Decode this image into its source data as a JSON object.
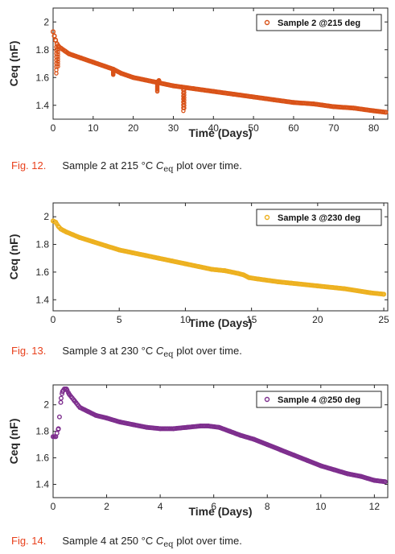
{
  "chart_data": [
    {
      "type": "scatter",
      "xlabel": "Time (Days)",
      "ylabel": "Ceq (nF)",
      "xlim": [
        0,
        83.5
      ],
      "ylim": [
        1.3,
        2.1
      ],
      "xticks": [
        0,
        10,
        20,
        30,
        40,
        50,
        60,
        70,
        80
      ],
      "yticks": [
        1.4,
        1.6,
        1.8,
        2.0
      ],
      "ytick_labels": [
        "1.4",
        "1.6",
        "1.8",
        "2"
      ],
      "grid": false,
      "legend": "top-right",
      "series": [
        {
          "name": "Sample 2 @215 deg",
          "color": "#d95319",
          "x": [
            0,
            0.3,
            0.6,
            1,
            1.5,
            2,
            3,
            4,
            5,
            7,
            10,
            13,
            15,
            17,
            20,
            25,
            30,
            35,
            40,
            45,
            50,
            55,
            60,
            65,
            70,
            75,
            80,
            83
          ],
          "y": [
            1.93,
            1.9,
            1.87,
            1.84,
            1.82,
            1.81,
            1.79,
            1.77,
            1.76,
            1.74,
            1.71,
            1.68,
            1.66,
            1.63,
            1.6,
            1.57,
            1.54,
            1.52,
            1.5,
            1.48,
            1.46,
            1.44,
            1.42,
            1.41,
            1.39,
            1.38,
            1.36,
            1.35
          ]
        }
      ],
      "spikes": [
        {
          "x": 0.8,
          "from": 1.82,
          "to": 1.63
        },
        {
          "x": 1.2,
          "from": 1.82,
          "to": 1.68
        },
        {
          "x": 15,
          "from": 1.66,
          "to": 1.62
        },
        {
          "x": 26,
          "from": 1.57,
          "to": 1.5
        },
        {
          "x": 26.4,
          "from": 1.57,
          "to": 1.58
        },
        {
          "x": 32.5,
          "from": 1.53,
          "to": 1.36
        },
        {
          "x": 32.7,
          "from": 1.53,
          "to": 1.38
        }
      ]
    },
    {
      "type": "scatter",
      "xlabel": "Time (Days)",
      "ylabel": "Ceq (nF)",
      "xlim": [
        0,
        25.3
      ],
      "ylim": [
        1.32,
        2.1
      ],
      "xticks": [
        0,
        5,
        10,
        15,
        20,
        25
      ],
      "yticks": [
        1.4,
        1.6,
        1.8,
        2.0
      ],
      "ytick_labels": [
        "1.4",
        "1.6",
        "1.8",
        "2"
      ],
      "grid": false,
      "legend": "top-right",
      "series": [
        {
          "name": "Sample 3 @230 deg",
          "color": "#edb120",
          "x": [
            0,
            0.2,
            0.4,
            0.6,
            0.8,
            1,
            1.5,
            2,
            3,
            4,
            5,
            6,
            7,
            8,
            9,
            10,
            11,
            12,
            13,
            14,
            14.4,
            14.8,
            15.5,
            17,
            18,
            20,
            22,
            24,
            25
          ],
          "y": [
            1.97,
            1.96,
            1.93,
            1.91,
            1.9,
            1.89,
            1.87,
            1.85,
            1.82,
            1.79,
            1.76,
            1.74,
            1.72,
            1.7,
            1.68,
            1.66,
            1.64,
            1.62,
            1.61,
            1.59,
            1.58,
            1.56,
            1.55,
            1.53,
            1.52,
            1.5,
            1.48,
            1.45,
            1.44
          ]
        }
      ]
    },
    {
      "type": "scatter",
      "xlabel": "Time (Days)",
      "ylabel": "Ceq (nF)",
      "xlim": [
        0,
        12.5
      ],
      "ylim": [
        1.3,
        2.15
      ],
      "xticks": [
        0,
        2,
        4,
        6,
        8,
        10,
        12
      ],
      "yticks": [
        1.4,
        1.6,
        1.8,
        2.0
      ],
      "ytick_labels": [
        "1.4",
        "1.6",
        "1.8",
        "2"
      ],
      "grid": false,
      "legend": "top-right",
      "series": [
        {
          "name": "Sample 4 @250 deg",
          "color": "#7e2f8e",
          "x": [
            0,
            0.1,
            0.2,
            0.3,
            0.35,
            0.42,
            0.5,
            0.6,
            0.8,
            1,
            1.3,
            1.6,
            2,
            2.5,
            3,
            3.5,
            4,
            4.5,
            5,
            5.5,
            5.8,
            6.2,
            6.6,
            7,
            7.5,
            8,
            8.5,
            9,
            9.5,
            10,
            10.5,
            11,
            11.5,
            12,
            12.4
          ],
          "y": [
            1.76,
            1.76,
            1.82,
            2.05,
            2.1,
            2.12,
            2.12,
            2.08,
            2.03,
            1.98,
            1.95,
            1.92,
            1.9,
            1.87,
            1.85,
            1.83,
            1.82,
            1.82,
            1.83,
            1.84,
            1.84,
            1.83,
            1.8,
            1.77,
            1.74,
            1.7,
            1.66,
            1.62,
            1.58,
            1.54,
            1.51,
            1.48,
            1.46,
            1.43,
            1.42
          ]
        }
      ]
    }
  ],
  "captions": [
    {
      "label": "Fig. 12.",
      "text": "Sample 2 at 215 °C",
      "symbol": "C",
      "subscript": "eq",
      "tail": "plot over time."
    },
    {
      "label": "Fig. 13.",
      "text": "Sample 3 at 230 °C",
      "symbol": "C",
      "subscript": "eq",
      "tail": "plot over time."
    },
    {
      "label": "Fig. 14.",
      "text": "Sample 4 at 250 °C",
      "symbol": "C",
      "subscript": "eq",
      "tail": "plot over time."
    }
  ]
}
